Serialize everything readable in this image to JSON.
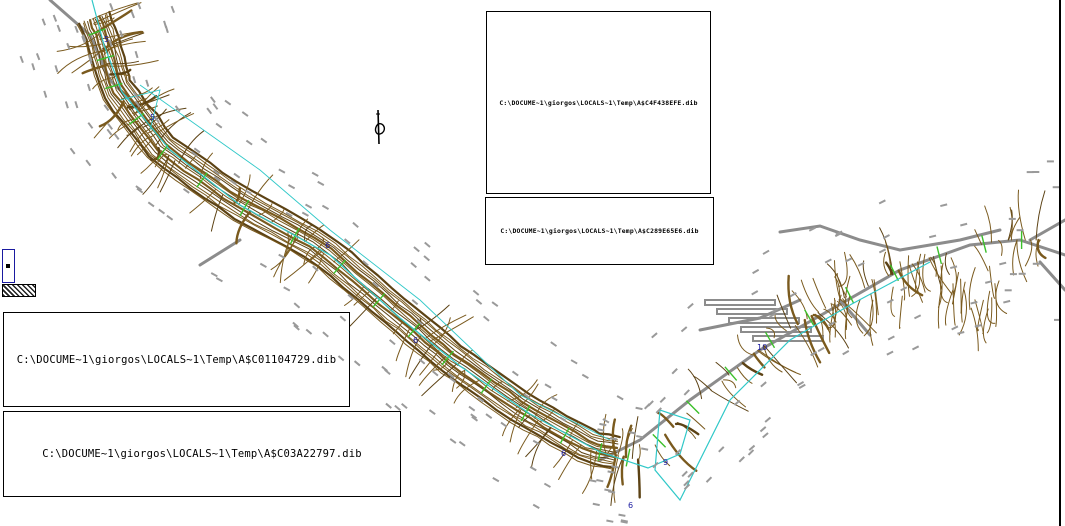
{
  "frames": [
    {
      "id": "frame-ad-c4f438efe",
      "path": "C:\\DOCUME~1\\giorgos\\LOCALS~1\\Temp\\A$C4F438EFE.dib"
    },
    {
      "id": "frame-ad-c289e65e6",
      "path": "C:\\DOCUME~1\\giorgos\\LOCALS~1\\Temp\\A$C289E65E6.dib"
    },
    {
      "id": "frame-ad-c01104729",
      "path": "C:\\DOCUME~1\\giorgos\\LOCALS~1\\Temp\\A$C01104729.dib"
    },
    {
      "id": "frame-ad-c03a22797",
      "path": "C:\\DOCUME~1\\giorgos\\LOCALS~1\\Temp\\A$C03A22797.dib"
    }
  ],
  "station_labels": [
    "5",
    "5",
    "6",
    "6",
    "6",
    "9",
    "10",
    "6"
  ],
  "colors": {
    "contour": "#7a5a1e",
    "contour_dark": "#5c4214",
    "road": "#8c8c8c",
    "alignment": "#30c8c8",
    "section": "#3bbf2a",
    "label": "#1a1aa0",
    "frame": "#000000"
  }
}
